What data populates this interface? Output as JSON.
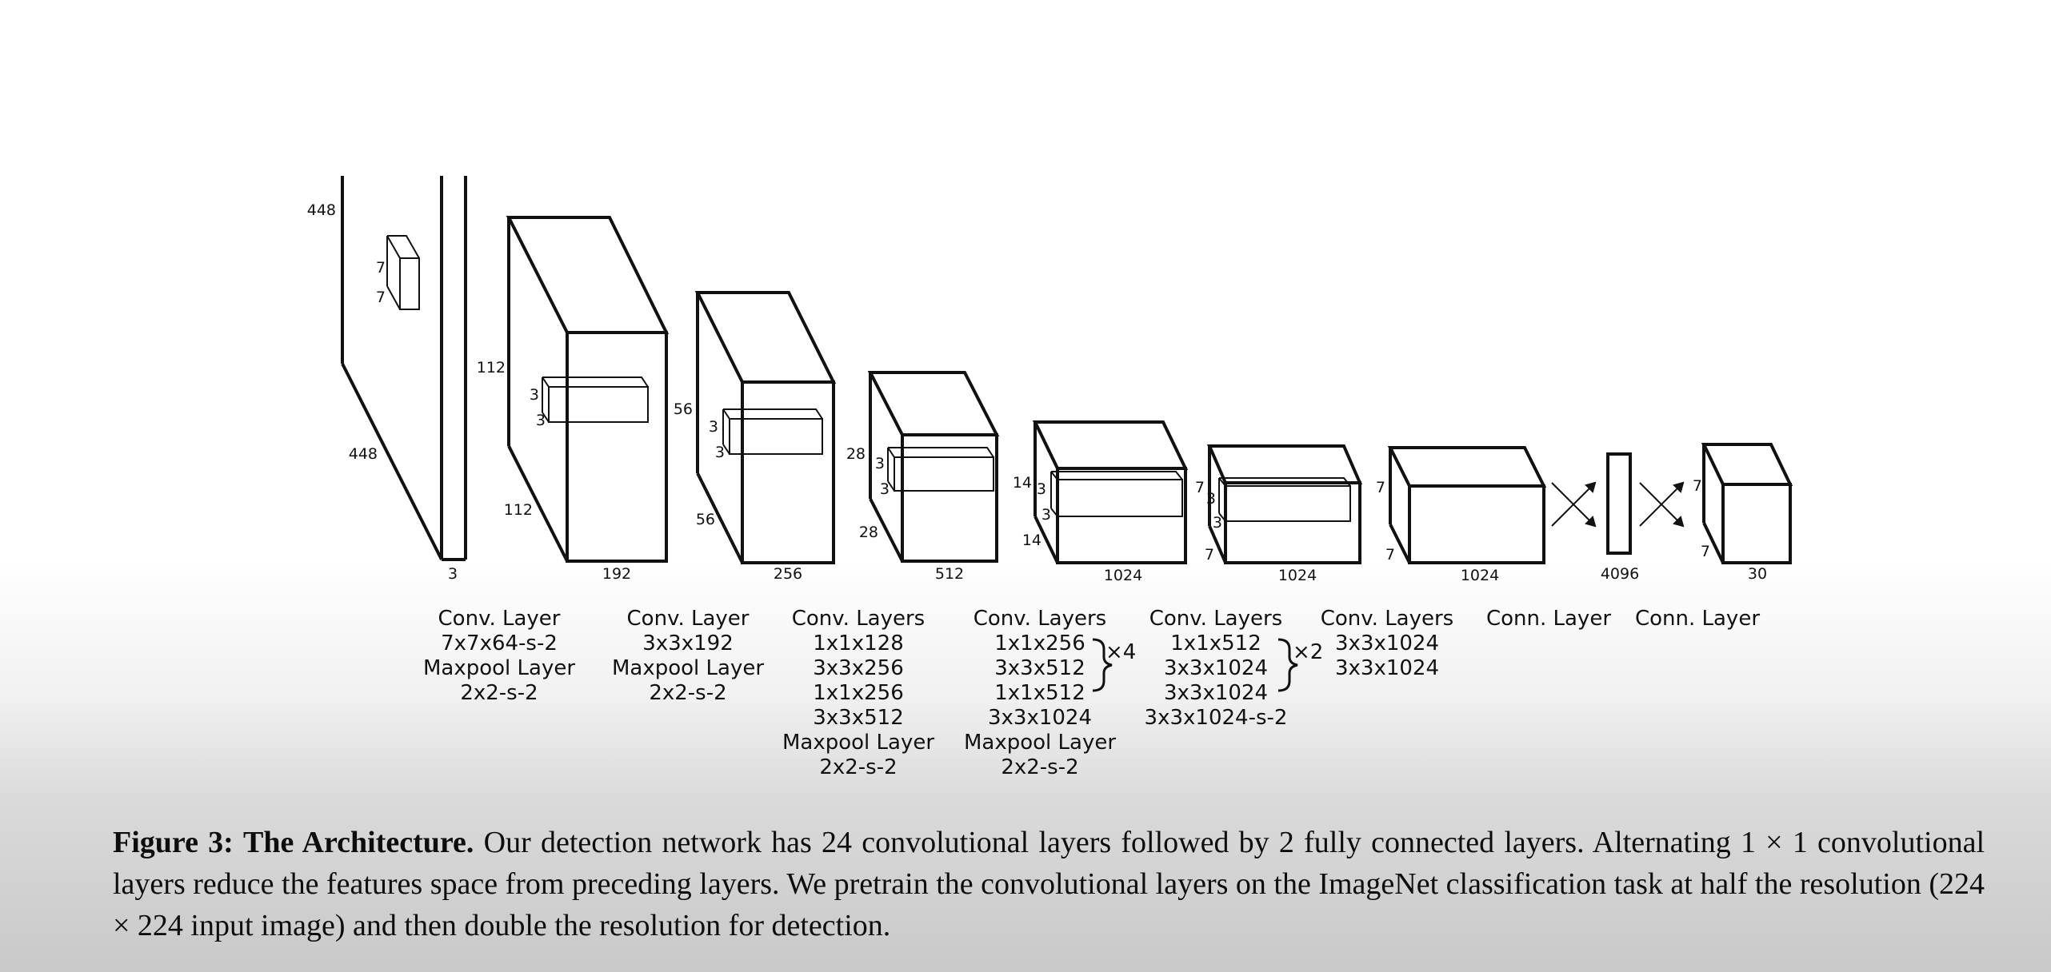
{
  "blocks": [
    {
      "dims": {
        "height": "448",
        "depth": "448",
        "width": "3"
      },
      "kernel": {
        "a": "7",
        "b": "7"
      },
      "label_lines": [
        "Conv. Layer",
        "7x7x64-s-2",
        "Maxpool Layer",
        "2x2-s-2"
      ]
    },
    {
      "dims": {
        "height": "112",
        "depth": "112",
        "width": "192"
      },
      "kernel": {
        "a": "3",
        "b": "3"
      },
      "label_lines": [
        "Conv. Layer",
        "3x3x192",
        "Maxpool Layer",
        "2x2-s-2"
      ]
    },
    {
      "dims": {
        "height": "56",
        "depth": "56",
        "width": "256"
      },
      "kernel": {
        "a": "3",
        "b": "3"
      },
      "label_lines": [
        "Conv. Layers",
        "1x1x128",
        "3x3x256",
        "1x1x256",
        "3x3x512",
        "Maxpool Layer",
        "2x2-s-2"
      ]
    },
    {
      "dims": {
        "height": "28",
        "depth": "28",
        "width": "512"
      },
      "kernel": {
        "a": "3",
        "b": "3"
      },
      "label_lines": [
        "Conv. Layers",
        "1x1x256",
        "3x3x512",
        "1x1x512",
        "3x3x1024",
        "Maxpool Layer",
        "2x2-s-2"
      ],
      "repeat": "×4"
    },
    {
      "dims": {
        "height": "14",
        "depth": "14",
        "width": "1024"
      },
      "kernel": {
        "a": "3",
        "b": "3"
      },
      "label_lines": [
        "Conv. Layers",
        "1x1x512",
        "3x3x1024",
        "3x3x1024",
        "3x3x1024-s-2"
      ],
      "repeat": "×2"
    },
    {
      "dims": {
        "height": "7",
        "depth": "7",
        "width": "1024"
      },
      "kernel": {
        "a": "3",
        "b": "3"
      },
      "label_lines": [
        "Conv. Layers",
        "3x3x1024",
        "3x3x1024"
      ]
    },
    {
      "dims": {
        "height": "7",
        "depth": "7",
        "width": "1024"
      },
      "label_lines": [
        "Conn. Layer"
      ]
    },
    {
      "dims": {
        "width": "4096"
      },
      "label_lines": [
        "Conn. Layer"
      ]
    },
    {
      "dims": {
        "height": "7",
        "depth": "7",
        "width": "30"
      }
    }
  ],
  "caption": {
    "figure": "Figure 3:",
    "title": "The Architecture.",
    "text": "Our detection network has 24 convolutional layers followed by 2 fully connected layers. Alternating 1 × 1 convolutional layers reduce the features space from preceding layers. We pretrain the convolutional layers on the ImageNet classification task at half the resolution (224 × 224 input image) and then double the resolution for detection."
  }
}
